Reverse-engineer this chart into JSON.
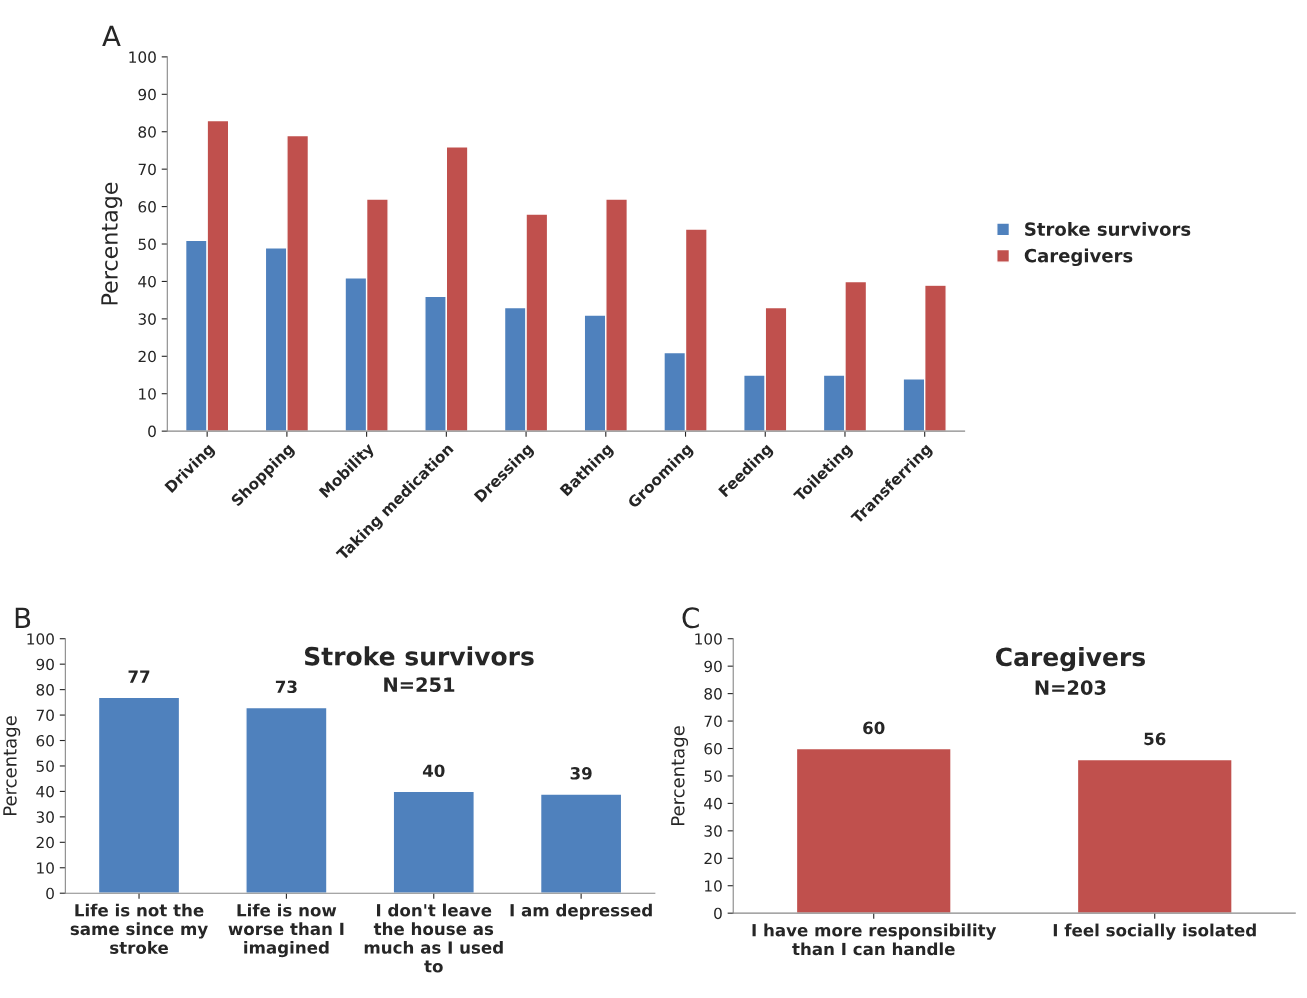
{
  "chart_data": [
    {
      "type": "bar",
      "ylabel": "Percentage",
      "annotations": [
        "A"
      ],
      "categories": [
        "Driving",
        "Shopping",
        "Mobility",
        "Taking medication",
        "Dressing",
        "Bathing",
        "Grooming",
        "Feeding",
        "Toileting",
        "Transferring"
      ],
      "series": [
        {
          "name": "Stroke survivors",
          "color": "#4f81bd",
          "values": [
            51,
            49,
            41,
            36,
            33,
            31,
            21,
            15,
            15,
            14
          ]
        },
        {
          "name": "Caregivers",
          "color": "#c0504d",
          "values": [
            83,
            79,
            62,
            76,
            58,
            62,
            54,
            33,
            40,
            39
          ]
        }
      ],
      "ylim": [
        0,
        100
      ],
      "yticks": [
        0,
        10,
        20,
        30,
        40,
        50,
        60,
        70,
        80,
        90,
        100
      ],
      "grid": false,
      "legend": "right"
    },
    {
      "type": "bar",
      "title": "Stroke survivors",
      "subtitle": "N=251",
      "ylabel": "Percentage",
      "annotations": [
        "B"
      ],
      "categories": [
        "Life is not the same since my stroke",
        "Life is now worse than I imagined",
        "I don't leave the house as much as I used to",
        "I am depressed"
      ],
      "values": [
        77,
        73,
        40,
        39
      ],
      "color": "#4f81bd",
      "data_labels": true,
      "ylim": [
        0,
        100
      ],
      "yticks": [
        0,
        10,
        20,
        30,
        40,
        50,
        60,
        70,
        80,
        90,
        100
      ],
      "grid": false
    },
    {
      "type": "bar",
      "title": "Caregivers",
      "subtitle": "N=203",
      "ylabel": "Percentage",
      "annotations": [
        "C"
      ],
      "categories": [
        "I have more responsibility than I can handle",
        "I feel socially isolated"
      ],
      "values": [
        60,
        56
      ],
      "color": "#c0504d",
      "data_labels": true,
      "ylim": [
        0,
        100
      ],
      "yticks": [
        0,
        10,
        20,
        30,
        40,
        50,
        60,
        70,
        80,
        90,
        100
      ],
      "grid": false
    }
  ]
}
